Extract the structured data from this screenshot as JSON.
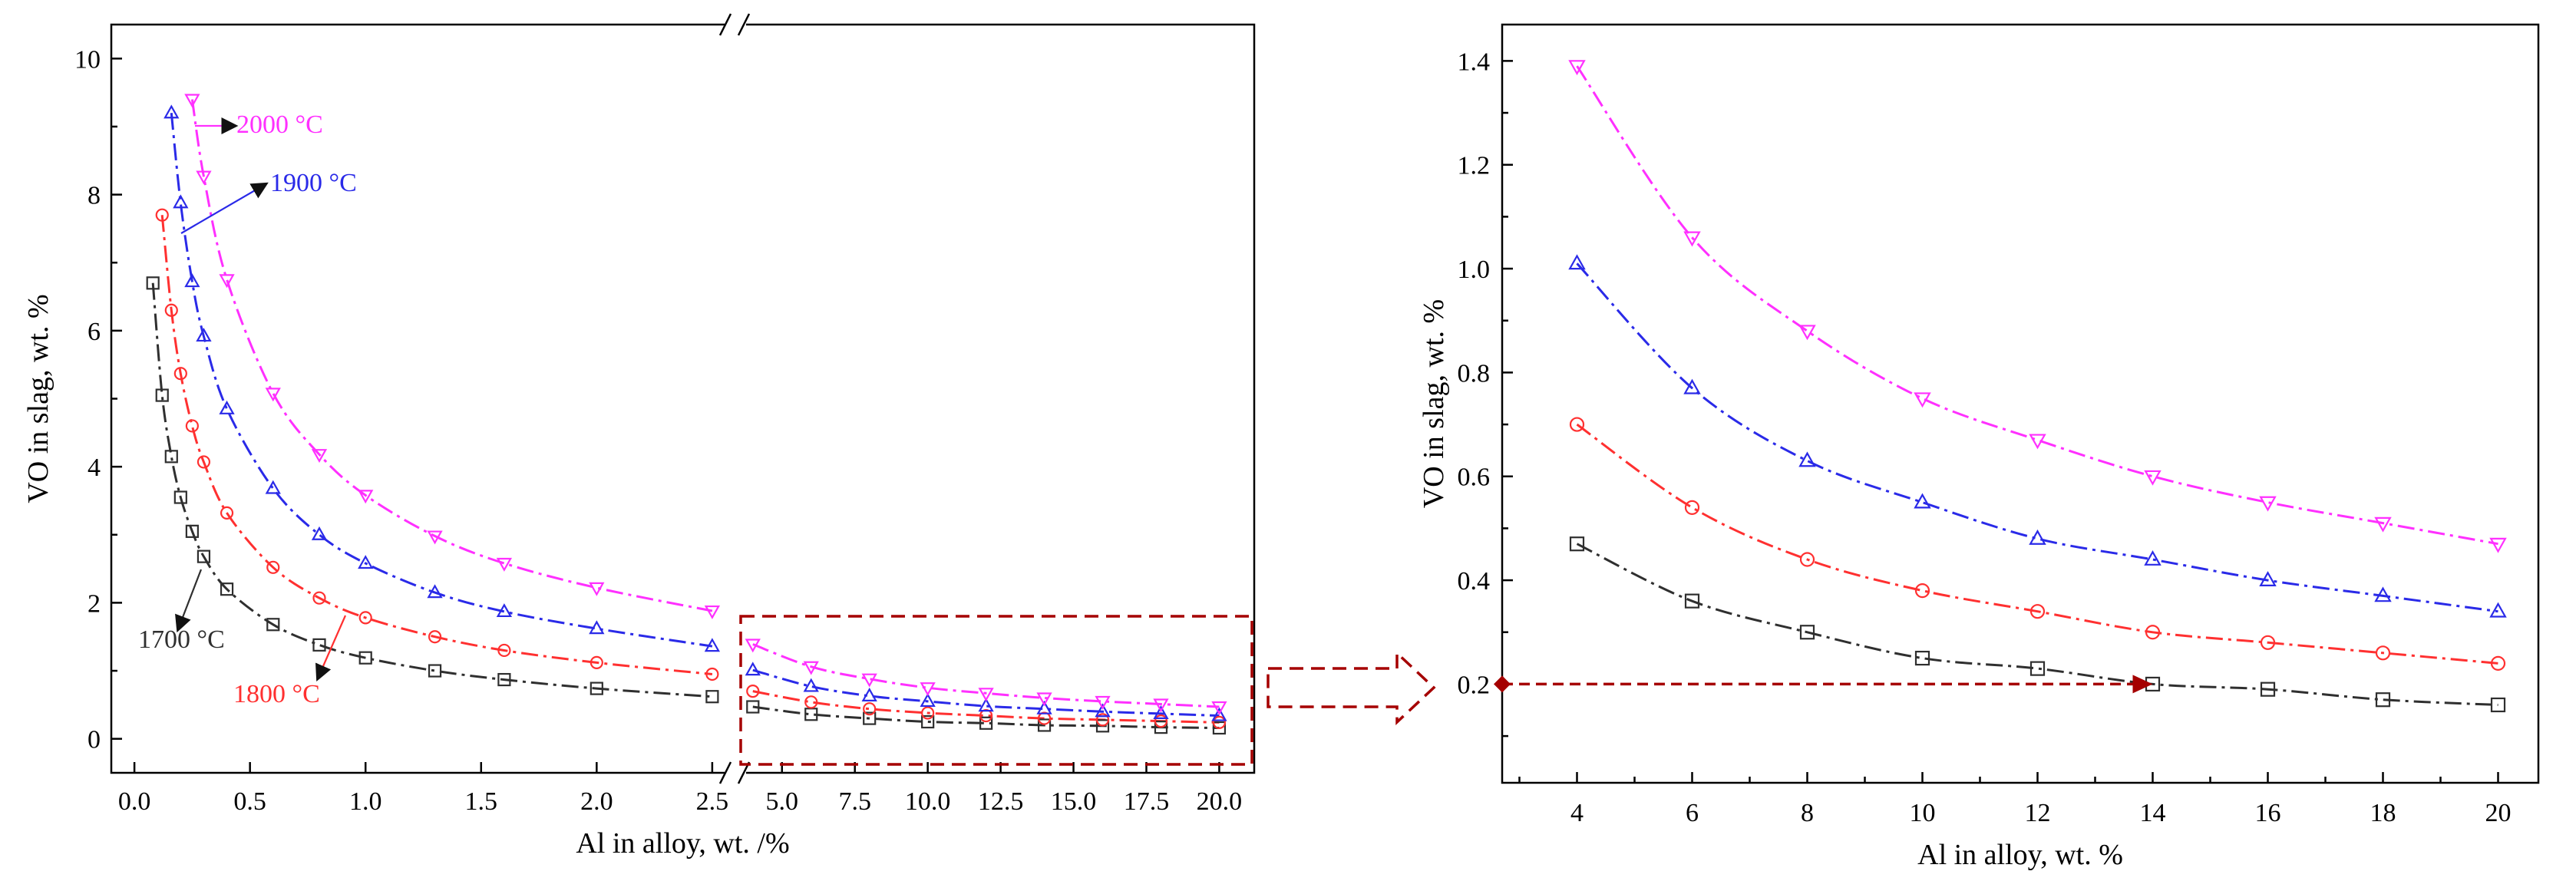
{
  "colors": {
    "1700": "#2f2f2f",
    "1800": "#ff3030",
    "1900": "#2a2ae8",
    "2000": "#ff30ff",
    "highlight": "#a50000"
  },
  "chart_data": [
    {
      "type": "line",
      "panel": "left",
      "xlabel": "Al in alloy, wt. /%",
      "ylabel": "VO in slag, wt. %",
      "ylim": [
        -0.5,
        10.5
      ],
      "yticks": [
        0,
        2,
        4,
        6,
        8,
        10
      ],
      "x_break": true,
      "segments": [
        {
          "xlim": [
            -0.1,
            2.6
          ],
          "xticks": [
            0.0,
            0.5,
            1.0,
            1.5,
            2.0,
            2.5
          ],
          "xticklabels": [
            "0.0",
            "0.5",
            "1.0",
            "1.5",
            "2.0",
            "2.5"
          ]
        },
        {
          "xlim": [
            3.4,
            21.2
          ],
          "xticks": [
            5,
            7.5,
            10,
            12.5,
            15,
            17.5,
            20
          ],
          "xticklabels": [
            "5.0",
            "7.5",
            "10.0",
            "12.5",
            "15.0",
            "17.5",
            "20.0"
          ]
        }
      ],
      "series": [
        {
          "name": "1700 °C",
          "label": "1700 °C",
          "marker": "square",
          "color_key": "1700",
          "low": {
            "x": [
              0.08,
              0.12,
              0.16,
              0.2,
              0.25,
              0.3,
              0.4,
              0.6,
              0.8,
              1.0,
              1.3,
              1.6,
              2.0,
              2.5
            ],
            "y": [
              6.7,
              5.05,
              4.15,
              3.55,
              3.05,
              2.68,
              2.2,
              1.68,
              1.38,
              1.19,
              1.0,
              0.87,
              0.74,
              0.62
            ]
          },
          "high": {
            "x": [
              4,
              6,
              8,
              10,
              12,
              14,
              16,
              18,
              20
            ],
            "y": [
              0.47,
              0.36,
              0.3,
              0.25,
              0.23,
              0.2,
              0.19,
              0.17,
              0.16
            ]
          }
        },
        {
          "name": "1800 °C",
          "label": "1800 °C",
          "marker": "circle",
          "color_key": "1800",
          "low": {
            "x": [
              0.12,
              0.16,
              0.2,
              0.25,
              0.3,
              0.4,
              0.6,
              0.8,
              1.0,
              1.3,
              1.6,
              2.0,
              2.5
            ],
            "y": [
              7.7,
              6.3,
              5.37,
              4.6,
              4.07,
              3.32,
              2.52,
              2.07,
              1.78,
              1.5,
              1.3,
              1.12,
              0.95
            ]
          },
          "high": {
            "x": [
              4,
              6,
              8,
              10,
              12,
              14,
              16,
              18,
              20
            ],
            "y": [
              0.7,
              0.54,
              0.44,
              0.38,
              0.34,
              0.3,
              0.28,
              0.26,
              0.24
            ]
          }
        },
        {
          "name": "1900 °C",
          "label": "1900 °C",
          "marker": "triangle-up",
          "color_key": "1900",
          "low": {
            "x": [
              0.16,
              0.2,
              0.25,
              0.3,
              0.4,
              0.6,
              0.8,
              1.0,
              1.3,
              1.6,
              2.0,
              2.5
            ],
            "y": [
              9.2,
              7.88,
              6.72,
              5.92,
              4.85,
              3.68,
              3.0,
              2.58,
              2.15,
              1.87,
              1.62,
              1.36
            ]
          },
          "high": {
            "x": [
              4,
              6,
              8,
              10,
              12,
              14,
              16,
              18,
              20
            ],
            "y": [
              1.01,
              0.77,
              0.63,
              0.55,
              0.48,
              0.44,
              0.4,
              0.37,
              0.34
            ]
          }
        },
        {
          "name": "2000 °C",
          "label": "2000 °C",
          "marker": "triangle-down",
          "color_key": "2000",
          "low": {
            "x": [
              0.25,
              0.3,
              0.4,
              0.6,
              0.8,
              1.0,
              1.3,
              1.6,
              2.0,
              2.5
            ],
            "y": [
              9.4,
              8.27,
              6.75,
              5.08,
              4.18,
              3.58,
              2.98,
              2.58,
              2.22,
              1.88
            ]
          },
          "high": {
            "x": [
              4,
              6,
              8,
              10,
              12,
              14,
              16,
              18,
              20
            ],
            "y": [
              1.39,
              1.06,
              0.88,
              0.75,
              0.67,
              0.6,
              0.55,
              0.51,
              0.47
            ]
          }
        }
      ]
    },
    {
      "type": "line",
      "panel": "right",
      "xlabel": "Al in alloy, wt. %",
      "ylabel": "VO in slag, wt. %",
      "xlim": [
        2.7,
        20.7
      ],
      "ylim": [
        0.01,
        1.47
      ],
      "xticks": [
        4,
        6,
        8,
        10,
        12,
        14,
        16,
        18,
        20
      ],
      "xticklabels": [
        "4",
        "6",
        "8",
        "10",
        "12",
        "14",
        "16",
        "18",
        "20"
      ],
      "yticks": [
        0.2,
        0.4,
        0.6,
        0.8,
        1.0,
        1.2,
        1.4
      ],
      "yticklabels": [
        "0.2",
        "0.4",
        "0.6",
        "0.8",
        "1.0",
        "1.2",
        "1.4"
      ],
      "annotation": {
        "type": "arrow",
        "from": [
          2.7,
          0.2
        ],
        "to": [
          14,
          0.2
        ]
      }
    }
  ]
}
